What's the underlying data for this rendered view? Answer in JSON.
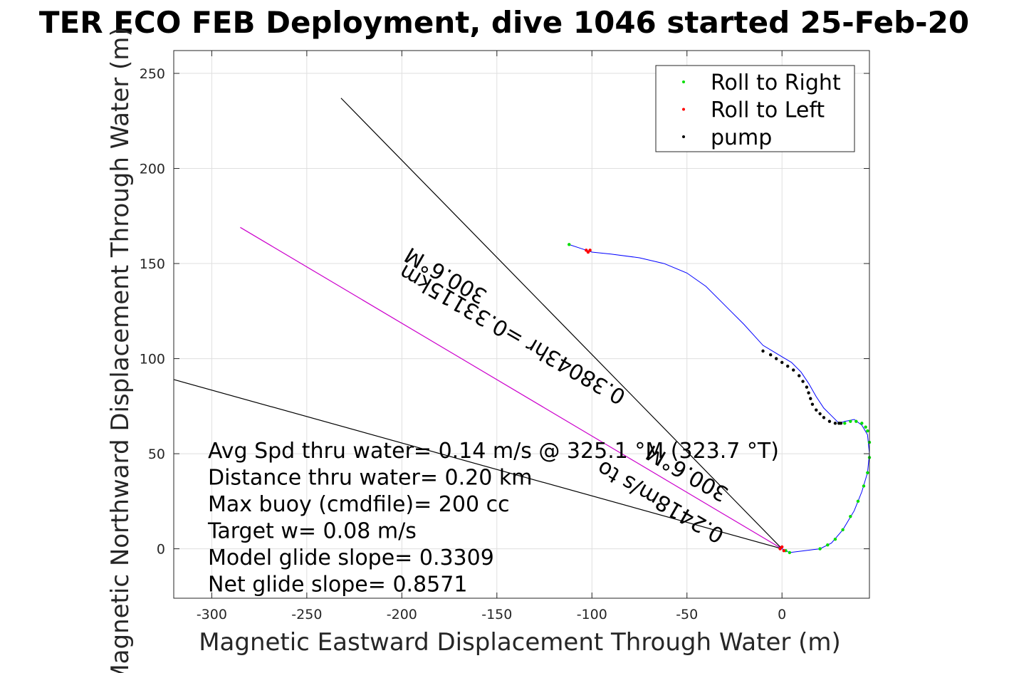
{
  "chart_data": {
    "type": "line",
    "title": "TER ECO FEB Deployment, dive 1046 started 25-Feb-20",
    "xlabel": "Magnetic Eastward Displacement Through Water (m)",
    "ylabel": "Magnetic Northward Displacement Through Water (m)",
    "xlim": [
      -320,
      46
    ],
    "ylim": [
      -26,
      262
    ],
    "xticks": [
      -300,
      -250,
      -200,
      -150,
      -100,
      -50,
      0
    ],
    "xtick_labels": [
      "-300",
      "-250",
      "-200",
      "-150",
      "-100",
      "-50",
      "0"
    ],
    "yticks": [
      0,
      50,
      100,
      150,
      200,
      250
    ],
    "ytick_labels": [
      "0",
      "50",
      "100",
      "150",
      "200",
      "250"
    ],
    "grid": true,
    "legend": {
      "placement": "top-right",
      "entries": [
        {
          "label": "Roll to Right",
          "color": "#00dd00"
        },
        {
          "label": "Roll to Left",
          "color": "#ff0000"
        },
        {
          "label": "pump",
          "color": "#000000"
        }
      ]
    },
    "track": {
      "color": "#0000ff",
      "x": [
        0,
        4,
        12,
        20,
        26,
        32,
        38,
        42,
        45,
        46,
        45,
        42,
        38,
        33,
        30,
        26,
        22,
        18,
        14,
        10,
        5,
        0,
        -5,
        -10,
        -20,
        -30,
        -40,
        -50,
        -62,
        -75,
        -90,
        -100,
        -106,
        -112
      ],
      "y": [
        0,
        -2,
        -1,
        0,
        3,
        10,
        20,
        30,
        40,
        50,
        60,
        65,
        68,
        67,
        66,
        70,
        74,
        80,
        87,
        93,
        98,
        101,
        104,
        107,
        118,
        128,
        138,
        145,
        150,
        153,
        155,
        156,
        158,
        160
      ]
    },
    "roll_right": {
      "color": "#00dd00",
      "x": [
        2,
        4,
        20,
        24,
        28,
        32,
        36,
        40,
        43,
        45,
        46,
        46,
        45,
        44,
        42,
        39,
        36,
        33,
        30,
        -112
      ],
      "y": [
        -1,
        -2,
        0,
        2,
        5,
        10,
        17,
        25,
        33,
        40,
        48,
        56,
        62,
        64,
        66,
        67,
        67,
        66,
        66,
        160
      ]
    },
    "roll_left": {
      "color": "#ff0000",
      "x": [
        -1,
        0,
        1,
        -103,
        -101,
        -102
      ],
      "y": [
        0,
        1,
        -1,
        157,
        157,
        156
      ]
    },
    "pump": {
      "color": "#000000",
      "x": [
        -10,
        -6,
        -3,
        0,
        3,
        6,
        9,
        11,
        13,
        14,
        15,
        16,
        18,
        20,
        22,
        25,
        28,
        30,
        31
      ],
      "y": [
        104,
        102,
        100,
        98,
        96,
        94,
        91,
        88,
        85,
        82,
        79,
        76,
        73,
        71,
        69,
        67,
        66,
        66,
        66
      ]
    },
    "reference_lines": [
      {
        "name": "heading-line",
        "color": "#000000",
        "x": [
          0,
          -232
        ],
        "y": [
          0,
          237
        ]
      },
      {
        "name": "wedge-line",
        "color": "#000000",
        "x": [
          0,
          -320
        ],
        "y": [
          0,
          89
        ]
      },
      {
        "name": "current-line",
        "color": "#cc00cc",
        "x": [
          0,
          -285
        ],
        "y": [
          0,
          169
        ]
      }
    ],
    "annotations": [
      {
        "text": "300.6°M",
        "x": -175,
        "y": 147,
        "rotation_deg": 210
      },
      {
        "text": "0.38043hr =0.33115km",
        "x": -140,
        "y": 116,
        "rotation_deg": 210
      },
      {
        "text": "300.6°M",
        "x": -48,
        "y": 43,
        "rotation_deg": 210
      },
      {
        "text": "0.2418m/s to",
        "x": -62,
        "y": 28,
        "rotation_deg": 210
      }
    ],
    "info_lines": [
      "Avg Spd thru water=  0.14 m/s @ 325.1 °M (323.7 °T)",
      "Distance thru water=  0.20 km",
      "Max buoy (cmdfile)= 200 cc",
      "Target w= 0.08 m/s",
      "Model glide slope= 0.3309",
      "Net glide slope= 0.8571"
    ]
  }
}
